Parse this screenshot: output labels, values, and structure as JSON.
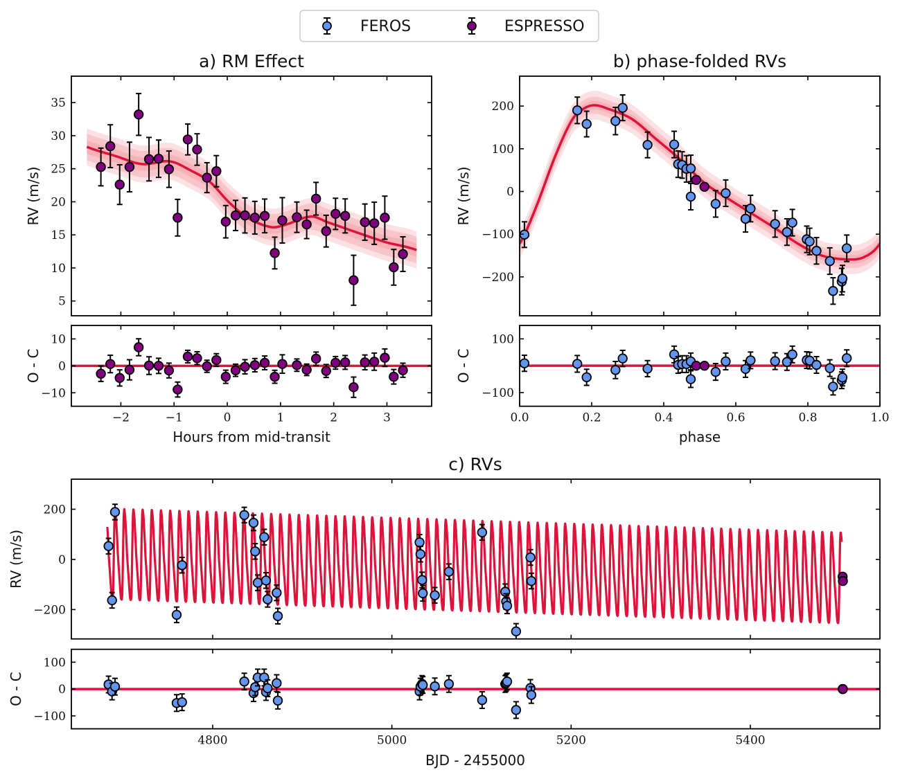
{
  "legend": {
    "placement": "top-center",
    "items": [
      {
        "label": "FEROS",
        "color": "#6495ED"
      },
      {
        "label": "ESPRESSO",
        "color": "#800080"
      }
    ]
  },
  "colors": {
    "model": "#DC143C",
    "band": "#F4A3A8",
    "marker_edge": "#000000"
  },
  "chart_data": [
    {
      "type": "scatter",
      "title": "a) RM Effect",
      "xlabel": "Hours from mid-transit",
      "ylabel": "RV (m/s)",
      "residual_ylabel": "O - C",
      "xlim": [
        -2.93,
        3.84
      ],
      "ylim": [
        2.77,
        39.0
      ],
      "residual_ylim": [
        -15,
        15
      ],
      "grid": false,
      "xticks": [
        -2,
        -1,
        0,
        1,
        2,
        3
      ],
      "xtick_labels": [
        "−2",
        "−1",
        "0",
        "1",
        "2",
        "3"
      ],
      "yticks": [
        5,
        10,
        15,
        20,
        25,
        30,
        35
      ],
      "ytick_labels": [
        "5",
        "10",
        "15",
        "20",
        "25",
        "30",
        "35"
      ],
      "residual_yticks": [
        -10,
        0,
        10
      ],
      "residual_ytick_labels": [
        "−10",
        "0",
        "10"
      ],
      "series": [
        {
          "name": "ESPRESSO",
          "color": "#800080",
          "x": [
            -2.375,
            -2.198,
            -2.022,
            -1.837,
            -1.665,
            -1.471,
            -1.29,
            -1.096,
            -0.933,
            -0.743,
            -0.567,
            -0.382,
            -0.205,
            -0.029,
            0.156,
            0.332,
            0.518,
            0.703,
            0.892,
            1.034,
            1.307,
            1.492,
            1.668,
            1.858,
            2.034,
            2.215,
            2.374,
            2.586,
            2.762,
            2.96,
            3.128,
            3.3
          ],
          "y": [
            25.27,
            28.41,
            22.6,
            25.27,
            33.21,
            26.45,
            26.52,
            24.93,
            17.6,
            29.43,
            27.91,
            23.65,
            24.63,
            16.99,
            17.94,
            17.94,
            17.6,
            17.87,
            12.26,
            17.2,
            17.67,
            16.59,
            20.47,
            15.57,
            18.18,
            17.87,
            8.14,
            16.93,
            16.76,
            17.6,
            10.1,
            12.09
          ],
          "yerr": [
            2.85,
            3.24,
            3.0,
            3.75,
            3.16,
            3.29,
            2.82,
            2.75,
            2.77,
            2.33,
            2.38,
            2.26,
            2.36,
            2.45,
            2.28,
            2.65,
            2.47,
            2.55,
            2.4,
            3.43,
            2.3,
            2.15,
            2.47,
            2.4,
            2.36,
            2.57,
            3.78,
            2.74,
            3.19,
            3.26,
            2.7,
            2.62
          ],
          "residual": [
            -2.93,
            0.69,
            -4.48,
            -1.47,
            6.9,
            0.09,
            0,
            -1.72,
            -8.79,
            3.45,
            2.84,
            -0.17,
            2.16,
            -4.05,
            -1.64,
            -0.34,
            0.26,
            1.12,
            -4.05,
            0.69,
            0.26,
            -1.47,
            2.67,
            -1.9,
            1.12,
            1.29,
            -7.93,
            1.29,
            1.55,
            3.02,
            -4.05,
            -1.64
          ]
        }
      ],
      "model": {
        "x": [
          -2.639,
          -2.088,
          -1.603,
          -1.074,
          -0.677,
          -0.325,
          0.028,
          0.381,
          0.822,
          1.086,
          1.571,
          1.88,
          2.541,
          2.982,
          3.556
        ],
        "y": [
          28.31,
          26.89,
          25.71,
          26.11,
          24.7,
          23.0,
          19.96,
          17.6,
          16.18,
          16.52,
          17.77,
          16.93,
          15.07,
          13.89,
          12.7
        ],
        "bands": [
          1.0,
          2.0,
          2.8
        ]
      }
    },
    {
      "type": "scatter",
      "title": "b) phase-folded RVs",
      "xlabel": "phase",
      "ylabel": "RV (m/s)",
      "residual_ylabel": "O - C",
      "xlim": [
        0.0,
        1.0
      ],
      "ylim": [
        -291,
        270
      ],
      "residual_ylim": [
        -151,
        150
      ],
      "grid": false,
      "xticks": [
        0.0,
        0.2,
        0.4,
        0.6,
        0.8,
        1.0
      ],
      "xtick_labels": [
        "0.0",
        "0.2",
        "0.4",
        "0.6",
        "0.8",
        "1.0"
      ],
      "yticks": [
        -200,
        -100,
        0,
        100,
        200
      ],
      "ytick_labels": [
        "−200",
        "−100",
        "0",
        "100",
        "200"
      ],
      "residual_yticks": [
        -100,
        100
      ],
      "residual_ytick_labels": [
        "−100",
        "100"
      ],
      "series": [
        {
          "name": "FEROS",
          "color": "#6495ED",
          "x": [
            0.0133,
            0.16,
            0.186,
            0.266,
            0.286,
            0.355,
            0.429,
            0.44,
            0.451,
            0.463,
            0.475,
            0.475,
            0.544,
            0.572,
            0.627,
            0.641,
            0.709,
            0.742,
            0.757,
            0.797,
            0.805,
            0.824,
            0.861,
            0.87,
            0.894,
            0.896,
            0.908
          ],
          "y": [
            -101,
            190,
            158,
            165,
            196,
            109,
            110,
            64,
            62,
            53,
            54,
            -12,
            -29,
            -4,
            -64,
            -40,
            -76,
            -95,
            -73,
            -112,
            -117,
            -139,
            -163,
            -233,
            -211,
            -204,
            -133
          ],
          "yerr": [
            30,
            31,
            30,
            32,
            30,
            30,
            31,
            31,
            31,
            31,
            31,
            31,
            31,
            31,
            31,
            31,
            31,
            31,
            31,
            31,
            31,
            31,
            31,
            31,
            31,
            31,
            31
          ],
          "residual": [
            9,
            7,
            -43,
            -16,
            27,
            -11,
            42,
            3,
            6,
            6,
            16,
            -50,
            -23,
            16,
            -12,
            20,
            17,
            14,
            42,
            21,
            19,
            3,
            -9,
            -78,
            -54,
            -44,
            28
          ]
        },
        {
          "name": "ESPRESSO",
          "color": "#800080",
          "x": [
            0.49,
            0.513
          ],
          "y": [
            27,
            11
          ],
          "yerr": [
            3,
            3
          ],
          "residual": [
            0,
            0
          ]
        }
      ],
      "model": {
        "x": [
          0,
          0.045,
          0.098,
          0.145,
          0.178,
          0.208,
          0.244,
          0.311,
          0.377,
          0.444,
          0.51,
          0.577,
          0.643,
          0.709,
          0.776,
          0.842,
          0.908,
          0.955,
          1.0
        ],
        "y": [
          -122,
          -38,
          81,
          167,
          194,
          202,
          194,
          170,
          124,
          76,
          22,
          -16,
          -51,
          -86,
          -124,
          -151,
          -159,
          -154,
          -122
        ],
        "bands": [
          10,
          20,
          34
        ]
      }
    },
    {
      "type": "scatter",
      "title": "c) RVs",
      "xlabel": "BJD - 2455000",
      "ylabel": "RV (m/s)",
      "residual_ylabel": "O - C",
      "xlim": [
        4642.3,
        5544.6
      ],
      "ylim": [
        -317,
        320
      ],
      "residual_ylim": [
        -148,
        148
      ],
      "grid": false,
      "xticks": [
        4800,
        5000,
        5200,
        5400
      ],
      "xtick_labels": [
        "4800",
        "5000",
        "5200",
        "5400"
      ],
      "yticks": [
        -200,
        0,
        200
      ],
      "ytick_labels": [
        "−200",
        "0",
        "200"
      ],
      "residual_yticks": [
        -100,
        0,
        100
      ],
      "residual_ytick_labels": [
        "−100",
        "0",
        "100"
      ],
      "series": [
        {
          "name": "FEROS",
          "color": "#6495ED",
          "x": [
            4683.8,
            4687.7,
            4691.0,
            4759.8,
            4765.8,
            4835.3,
            4845.6,
            4847.4,
            4850.3,
            4857.5,
            4859.5,
            4861.3,
            4871.4,
            4872.7,
            5030.9,
            5031.9,
            5033.7,
            5034.5,
            5047.9,
            5063.6,
            5100.7,
            5126.5,
            5127.5,
            5128.6,
            5138.6,
            5154.6,
            5155.6
          ],
          "y": [
            53,
            -163,
            189,
            -221,
            -23,
            177,
            146,
            32,
            -93,
            89,
            -84,
            -159,
            -133,
            -226,
            68,
            21,
            -82,
            -135,
            -143,
            -49,
            108,
            -129,
            -168,
            -185,
            -287,
            8,
            -86
          ],
          "yerr": [
            31,
            31,
            31,
            31,
            31,
            31,
            31,
            31,
            31,
            31,
            31,
            31,
            31,
            31,
            31,
            31,
            31,
            31,
            31,
            31,
            31,
            31,
            31,
            31,
            31,
            31,
            31
          ],
          "residual": [
            17,
            -9,
            9,
            -52,
            -49,
            28,
            -15,
            7,
            43,
            43,
            -11,
            3,
            22,
            -43,
            -9,
            9,
            19,
            15,
            10,
            19,
            -41,
            19,
            23,
            28,
            -78,
            4,
            -22
          ]
        },
        {
          "name": "ESPRESSO",
          "color": "#800080",
          "x": [
            5503.0,
            5503.3
          ],
          "y": [
            -69,
            -86
          ],
          "yerr": [
            3,
            3
          ],
          "residual": [
            0,
            0
          ]
        }
      ]
    }
  ]
}
